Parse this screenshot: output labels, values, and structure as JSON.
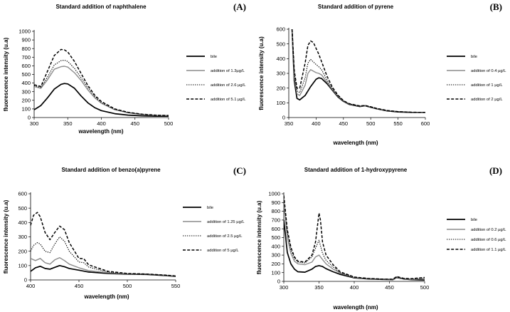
{
  "figure": {
    "colors": {
      "bile": "#000000",
      "add1": "#8c8c8c",
      "add2": "#000000",
      "add3": "#000000"
    }
  },
  "chart_data": [
    {
      "type": "line",
      "panel": "(A)",
      "title": "Standard addition of naphthalene",
      "xlabel": "wavelength  (nm)",
      "ylabel": "fluorescence intensity (u.a)",
      "xlim": [
        300,
        500
      ],
      "ylim": [
        0,
        1000
      ],
      "xticks": [
        300,
        350,
        400,
        450,
        500
      ],
      "yticks": [
        0,
        100,
        200,
        300,
        400,
        500,
        600,
        700,
        800,
        900,
        1000
      ],
      "grid": false,
      "legend": "right",
      "series": [
        {
          "name": "bile",
          "style": "solid-thick",
          "x": [
            300,
            310,
            320,
            330,
            340,
            345,
            350,
            360,
            370,
            380,
            390,
            400,
            420,
            440,
            460,
            480,
            500
          ],
          "y": [
            90,
            140,
            230,
            330,
            385,
            395,
            390,
            340,
            250,
            170,
            115,
            80,
            45,
            28,
            20,
            16,
            15
          ]
        },
        {
          "name": "addition of 1.3µg/L",
          "style": "solid-gray",
          "x": [
            300,
            310,
            320,
            330,
            340,
            345,
            350,
            360,
            370,
            380,
            390,
            400,
            420,
            440,
            460,
            480,
            500
          ],
          "y": [
            360,
            340,
            440,
            560,
            590,
            595,
            585,
            520,
            430,
            320,
            230,
            165,
            90,
            55,
            35,
            25,
            22
          ]
        },
        {
          "name": "addition of 2.6 µg/L",
          "style": "dotted",
          "x": [
            300,
            310,
            320,
            330,
            340,
            345,
            350,
            360,
            370,
            380,
            390,
            400,
            420,
            440,
            460,
            480,
            500
          ],
          "y": [
            370,
            350,
            470,
            610,
            660,
            665,
            650,
            570,
            460,
            345,
            245,
            175,
            95,
            58,
            38,
            27,
            23
          ]
        },
        {
          "name": "addition of 5.1 µg/L",
          "style": "dashed",
          "x": [
            300,
            310,
            320,
            330,
            340,
            345,
            350,
            360,
            370,
            380,
            390,
            400,
            420,
            440,
            460,
            480,
            500
          ],
          "y": [
            380,
            360,
            540,
            720,
            790,
            785,
            760,
            650,
            510,
            370,
            260,
            185,
            100,
            60,
            40,
            28,
            24
          ]
        }
      ]
    },
    {
      "type": "line",
      "panel": "(B)",
      "title": "Standard addition of pyrene",
      "xlabel": "wavelength  (nm)",
      "ylabel": "fluorescence intensity (u.a)",
      "xlim": [
        350,
        600
      ],
      "ylim": [
        0,
        600
      ],
      "xticks": [
        350,
        400,
        450,
        500,
        550,
        600
      ],
      "yticks": [
        0,
        100,
        200,
        300,
        400,
        500,
        600
      ],
      "grid": false,
      "legend": "right",
      "series": [
        {
          "name": "bile",
          "style": "solid-thick",
          "x": [
            356,
            360,
            365,
            370,
            380,
            390,
            400,
            405,
            410,
            420,
            430,
            440,
            450,
            460,
            480,
            490,
            500,
            510,
            530,
            550,
            575,
            600
          ],
          "y": [
            600,
            250,
            130,
            120,
            150,
            210,
            260,
            270,
            265,
            230,
            185,
            140,
            110,
            90,
            75,
            80,
            70,
            60,
            45,
            38,
            35,
            35
          ]
        },
        {
          "name": "addition of 0.4 µg/L",
          "style": "solid-gray",
          "x": [
            356,
            360,
            365,
            370,
            380,
            385,
            390,
            400,
            405,
            410,
            420,
            430,
            440,
            450,
            460,
            480,
            490,
            500,
            510,
            530,
            550,
            575,
            600
          ],
          "y": [
            600,
            280,
            160,
            150,
            220,
            300,
            325,
            305,
            300,
            290,
            240,
            190,
            145,
            112,
            92,
            77,
            80,
            72,
            62,
            47,
            40,
            36,
            35
          ]
        },
        {
          "name": "addition of 1 µg/L",
          "style": "dotted",
          "x": [
            356,
            360,
            365,
            370,
            380,
            385,
            390,
            400,
            405,
            410,
            420,
            430,
            440,
            450,
            460,
            480,
            490,
            500,
            510,
            530,
            550,
            575,
            600
          ],
          "y": [
            600,
            300,
            180,
            170,
            270,
            370,
            395,
            360,
            345,
            325,
            255,
            195,
            148,
            113,
            93,
            78,
            81,
            72,
            62,
            47,
            40,
            36,
            35
          ]
        },
        {
          "name": "addition of 2 µg/L",
          "style": "dashed",
          "x": [
            356,
            360,
            365,
            370,
            380,
            385,
            390,
            395,
            400,
            405,
            410,
            420,
            430,
            440,
            450,
            460,
            480,
            490,
            500,
            510,
            530,
            550,
            575,
            600
          ],
          "y": [
            600,
            320,
            200,
            200,
            370,
            490,
            520,
            510,
            470,
            430,
            380,
            280,
            205,
            152,
            115,
            95,
            79,
            82,
            73,
            63,
            48,
            40,
            36,
            35
          ]
        }
      ]
    },
    {
      "type": "line",
      "panel": "(C)",
      "title": "Standard addition of benzo(a)pyrene",
      "xlabel": "wavelength  (nm)",
      "ylabel": "fluorescence intensity (u.a)",
      "xlim": [
        400,
        550
      ],
      "ylim": [
        0,
        600
      ],
      "xticks": [
        400,
        450,
        500,
        550
      ],
      "yticks": [
        0,
        100,
        200,
        300,
        400,
        500,
        600
      ],
      "grid": false,
      "legend": "right",
      "series": [
        {
          "name": "bile",
          "style": "solid-thick",
          "x": [
            400,
            405,
            410,
            415,
            420,
            425,
            430,
            435,
            440,
            450,
            460,
            480,
            500,
            520,
            540,
            550
          ],
          "y": [
            60,
            85,
            95,
            80,
            75,
            88,
            100,
            92,
            80,
            68,
            55,
            45,
            40,
            38,
            30,
            25
          ]
        },
        {
          "name": "addition of 1.25 µg/L",
          "style": "solid-gray",
          "x": [
            400,
            405,
            410,
            415,
            420,
            425,
            430,
            435,
            440,
            450,
            460,
            480,
            500,
            520,
            540,
            550
          ],
          "y": [
            150,
            135,
            150,
            120,
            110,
            140,
            155,
            135,
            110,
            85,
            65,
            50,
            42,
            40,
            32,
            26
          ]
        },
        {
          "name": "addition of 2.5 µg/L",
          "style": "dotted",
          "x": [
            400,
            403,
            407,
            410,
            415,
            420,
            425,
            430,
            435,
            440,
            450,
            455,
            460,
            480,
            500,
            520,
            540,
            550
          ],
          "y": [
            200,
            240,
            260,
            250,
            200,
            190,
            250,
            300,
            270,
            200,
            125,
            120,
            90,
            55,
            43,
            40,
            32,
            27
          ]
        },
        {
          "name": "addition of 5 µg/L",
          "style": "dashed",
          "x": [
            400,
            403,
            407,
            410,
            415,
            420,
            425,
            430,
            435,
            440,
            450,
            455,
            460,
            480,
            500,
            520,
            540,
            550
          ],
          "y": [
            380,
            450,
            470,
            440,
            330,
            280,
            330,
            375,
            350,
            260,
            150,
            148,
            105,
            60,
            45,
            41,
            33,
            28
          ]
        }
      ]
    },
    {
      "type": "line",
      "panel": "(D)",
      "title": "Standard addition of 1-hydroxypyrene",
      "xlabel": "wavelength  (nm)",
      "ylabel": "fluorescence intensity (u.a)",
      "xlim": [
        300,
        500
      ],
      "ylim": [
        0,
        1000
      ],
      "xticks": [
        300,
        350,
        400,
        450,
        500
      ],
      "yticks": [
        0,
        100,
        200,
        300,
        400,
        500,
        600,
        700,
        800,
        900,
        1000
      ],
      "grid": false,
      "legend": "right",
      "series": [
        {
          "name": "bile",
          "style": "solid-thick",
          "x": [
            300,
            305,
            310,
            315,
            320,
            330,
            340,
            345,
            350,
            355,
            360,
            370,
            380,
            400,
            420,
            440,
            455,
            460,
            470,
            480,
            500
          ],
          "y": [
            700,
            330,
            200,
            140,
            110,
            105,
            140,
            170,
            180,
            170,
            145,
            110,
            80,
            40,
            28,
            22,
            20,
            45,
            28,
            20,
            15
          ]
        },
        {
          "name": "addition of 0.2 µg/L",
          "style": "solid-gray",
          "x": [
            300,
            305,
            310,
            315,
            320,
            330,
            340,
            345,
            350,
            355,
            360,
            370,
            380,
            400,
            420,
            440,
            455,
            460,
            470,
            480,
            500
          ],
          "y": [
            900,
            500,
            320,
            230,
            200,
            190,
            220,
            280,
            300,
            250,
            200,
            140,
            95,
            45,
            30,
            24,
            22,
            48,
            30,
            22,
            30
          ]
        },
        {
          "name": "addition of 0.6 µg/L",
          "style": "dotted",
          "x": [
            300,
            305,
            310,
            315,
            320,
            330,
            340,
            345,
            350,
            355,
            360,
            370,
            380,
            400,
            420,
            440,
            455,
            460,
            470,
            480,
            500
          ],
          "y": [
            950,
            560,
            360,
            260,
            220,
            210,
            280,
            380,
            470,
            320,
            240,
            165,
            100,
            48,
            32,
            25,
            23,
            50,
            32,
            26,
            40
          ]
        },
        {
          "name": "addition of 1.1 µg/L",
          "style": "dashed",
          "x": [
            300,
            305,
            310,
            315,
            320,
            330,
            340,
            345,
            350,
            352,
            355,
            360,
            370,
            380,
            400,
            420,
            440,
            455,
            460,
            470,
            480,
            500
          ],
          "y": [
            980,
            590,
            390,
            280,
            230,
            220,
            300,
            450,
            780,
            700,
            450,
            300,
            190,
            110,
            50,
            33,
            26,
            24,
            55,
            35,
            30,
            45
          ]
        }
      ]
    }
  ]
}
